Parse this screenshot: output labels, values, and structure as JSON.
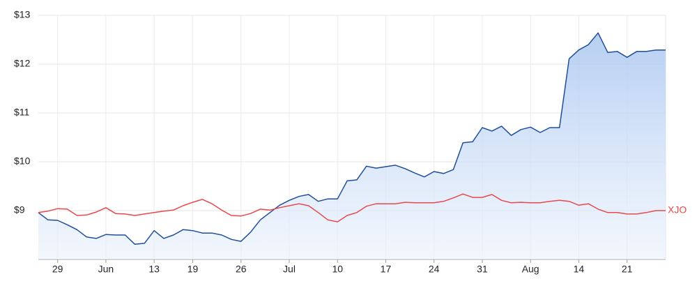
{
  "chart_data": {
    "type": "line",
    "categories": [
      null,
      null,
      "29",
      null,
      null,
      null,
      null,
      "Jun",
      null,
      null,
      null,
      null,
      "13",
      null,
      null,
      null,
      "19",
      null,
      null,
      null,
      null,
      "26",
      null,
      null,
      null,
      null,
      "Jul",
      null,
      null,
      null,
      null,
      "10",
      null,
      null,
      null,
      null,
      "17",
      null,
      null,
      null,
      null,
      "24",
      null,
      null,
      null,
      null,
      "31",
      null,
      null,
      null,
      null,
      "Aug",
      null,
      null,
      null,
      null,
      "14",
      null,
      null,
      null,
      null,
      "21",
      null,
      null,
      null,
      null
    ],
    "series": [
      {
        "color": "#1f4e99",
        "area": true,
        "values": [
          8.96,
          8.81,
          8.8,
          8.71,
          8.61,
          8.46,
          8.43,
          8.51,
          8.5,
          8.5,
          8.31,
          8.33,
          8.59,
          8.43,
          8.5,
          8.61,
          8.59,
          8.54,
          8.54,
          8.5,
          8.41,
          8.37,
          8.56,
          8.81,
          8.96,
          9.11,
          9.21,
          9.29,
          9.33,
          9.19,
          9.24,
          9.24,
          9.61,
          9.63,
          9.91,
          9.87,
          9.9,
          9.93,
          9.86,
          9.77,
          9.69,
          9.8,
          9.76,
          9.84,
          10.39,
          10.41,
          10.7,
          10.63,
          10.73,
          10.54,
          10.66,
          10.71,
          10.6,
          10.7,
          10.7,
          12.11,
          12.29,
          12.4,
          12.64,
          12.24,
          12.26,
          12.14,
          12.26,
          12.26,
          12.29,
          12.29
        ]
      },
      {
        "name": "XJO",
        "color": "#e8484a",
        "values": [
          8.96,
          8.99,
          9.04,
          9.03,
          8.9,
          8.91,
          8.97,
          9.06,
          8.94,
          8.93,
          8.9,
          8.93,
          8.96,
          8.99,
          9.01,
          9.1,
          9.17,
          9.23,
          9.14,
          9.01,
          8.9,
          8.89,
          8.94,
          9.03,
          9.01,
          9.06,
          9.1,
          9.14,
          9.1,
          8.96,
          8.81,
          8.77,
          8.9,
          8.96,
          9.09,
          9.14,
          9.14,
          9.14,
          9.17,
          9.16,
          9.16,
          9.16,
          9.19,
          9.26,
          9.34,
          9.27,
          9.27,
          9.33,
          9.21,
          9.16,
          9.17,
          9.16,
          9.16,
          9.19,
          9.21,
          9.19,
          9.11,
          9.14,
          9.03,
          8.96,
          8.96,
          8.93,
          8.93,
          8.96,
          9.0,
          9.0
        ]
      }
    ],
    "ylim": [
      8,
      13
    ],
    "yticks": [
      {
        "value": 9,
        "label": "$9"
      },
      {
        "value": 10,
        "label": "$10"
      },
      {
        "value": 11,
        "label": "$11"
      },
      {
        "value": 12,
        "label": "$12"
      },
      {
        "value": 13,
        "label": "$13"
      }
    ],
    "grid": true
  }
}
